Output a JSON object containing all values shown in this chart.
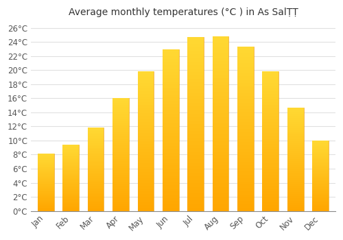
{
  "title": "Average monthly temperatures (°C ) in As SalṬṬ",
  "months": [
    "Jan",
    "Feb",
    "Mar",
    "Apr",
    "May",
    "Jun",
    "Jul",
    "Aug",
    "Sep",
    "Oct",
    "Nov",
    "Dec"
  ],
  "values": [
    8.1,
    9.4,
    11.8,
    16.0,
    19.8,
    23.0,
    24.7,
    24.8,
    23.3,
    19.8,
    14.7,
    10.0
  ],
  "bar_color": "#FFA500",
  "bar_color_light": "#FFD060",
  "ylim": [
    0,
    27
  ],
  "ytick_step": 2,
  "background_color": "#ffffff",
  "plot_bg_color": "#ffffff",
  "grid_color": "#e0e0e0",
  "title_fontsize": 10,
  "tick_fontsize": 8.5,
  "font_family": "DejaVu Sans"
}
